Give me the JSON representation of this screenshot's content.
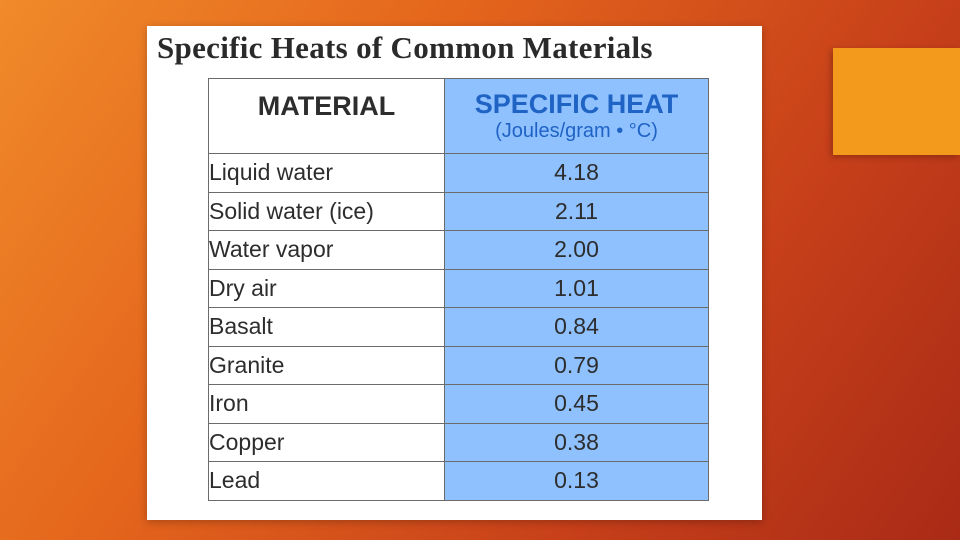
{
  "title": "Specific Heats of Common Materials",
  "table": {
    "header_material": "MATERIAL",
    "header_heat": "SPECIFIC HEAT",
    "header_heat_unit": "(Joules/gram • °C)",
    "rows": [
      {
        "material": "Liquid water",
        "value": "4.18"
      },
      {
        "material": "Solid water (ice)",
        "value": "2.11"
      },
      {
        "material": "Water vapor",
        "value": "2.00"
      },
      {
        "material": "Dry air",
        "value": "1.01"
      },
      {
        "material": "Basalt",
        "value": "0.84"
      },
      {
        "material": "Granite",
        "value": "0.79"
      },
      {
        "material": "Iron",
        "value": "0.45"
      },
      {
        "material": "Copper",
        "value": "0.38"
      },
      {
        "material": "Lead",
        "value": "0.13"
      }
    ]
  },
  "colors": {
    "background_start": "#f08a2a",
    "background_end": "#a92a16",
    "accent_box": "#f39a1d",
    "value_column": "#8fc1ff",
    "header_text_blue": "#1f63c4"
  }
}
